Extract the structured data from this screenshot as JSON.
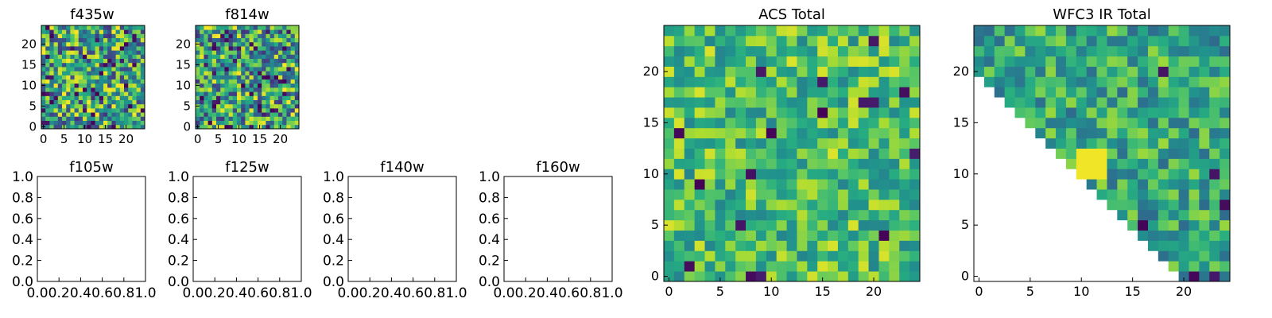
{
  "chart_data": [
    {
      "type": "heatmap",
      "title": "f435w",
      "xlim": [
        -0.5,
        24.5
      ],
      "ylim": [
        -0.5,
        24.5
      ],
      "xticks": [
        0,
        5,
        10,
        15,
        20
      ],
      "yticks": [
        0,
        5,
        10,
        15,
        20
      ],
      "grid": 25,
      "colormap": "viridis",
      "mask": "none",
      "values": "random noise field, roughly uniform 0–1"
    },
    {
      "type": "heatmap",
      "title": "f814w",
      "xlim": [
        -0.5,
        24.5
      ],
      "ylim": [
        -0.5,
        24.5
      ],
      "xticks": [
        0,
        5,
        10,
        15,
        20
      ],
      "yticks": [
        0,
        5,
        10,
        15,
        20
      ],
      "grid": 25,
      "colormap": "viridis",
      "mask": "none",
      "values": "random noise field, roughly uniform 0–1"
    },
    {
      "type": "empty",
      "title": "f105w",
      "xlim": [
        0,
        1
      ],
      "ylim": [
        0,
        1
      ],
      "xticks": [
        "0.0",
        "0.2",
        "0.4",
        "0.6",
        "0.8",
        "1.0"
      ],
      "yticks": [
        "0.0",
        "0.2",
        "0.4",
        "0.6",
        "0.8",
        "1.0"
      ]
    },
    {
      "type": "empty",
      "title": "f125w",
      "xlim": [
        0,
        1
      ],
      "ylim": [
        0,
        1
      ],
      "xticks": [
        "0.0",
        "0.2",
        "0.4",
        "0.6",
        "0.8",
        "1.0"
      ],
      "yticks": [
        "0.0",
        "0.2",
        "0.4",
        "0.6",
        "0.8",
        "1.0"
      ]
    },
    {
      "type": "empty",
      "title": "f140w",
      "xlim": [
        0,
        1
      ],
      "ylim": [
        0,
        1
      ],
      "xticks": [
        "0.0",
        "0.2",
        "0.4",
        "0.6",
        "0.8",
        "1.0"
      ],
      "yticks": [
        "0.0",
        "0.2",
        "0.4",
        "0.6",
        "0.8",
        "1.0"
      ]
    },
    {
      "type": "empty",
      "title": "f160w",
      "xlim": [
        0,
        1
      ],
      "ylim": [
        0,
        1
      ],
      "xticks": [
        "0.0",
        "0.2",
        "0.4",
        "0.6",
        "0.8",
        "1.0"
      ],
      "yticks": [
        "0.0",
        "0.2",
        "0.4",
        "0.6",
        "0.8",
        "1.0"
      ]
    },
    {
      "type": "heatmap",
      "title": "ACS Total",
      "xlim": [
        -0.5,
        24.5
      ],
      "ylim": [
        -0.5,
        24.5
      ],
      "xticks": [
        0,
        5,
        10,
        15,
        20
      ],
      "yticks": [
        0,
        5,
        10,
        15,
        20
      ],
      "grid": 25,
      "colormap": "viridis",
      "mask": "none",
      "values": "noise field, mostly 0.5–0.9 with a few low (dark) pixels"
    },
    {
      "type": "heatmap",
      "title": "WFC3 IR Total",
      "xlim": [
        -0.5,
        24.5
      ],
      "ylim": [
        -0.5,
        24.5
      ],
      "xticks": [
        0,
        5,
        10,
        15,
        20
      ],
      "yticks": [
        0,
        5,
        10,
        15,
        20
      ],
      "grid": 25,
      "colormap": "viridis",
      "mask": "lower-left triangle blank (x + 0 < 20 - y roughly)",
      "values": "noise field, mostly 0.4–0.8, bright cluster near (11,12)"
    }
  ]
}
